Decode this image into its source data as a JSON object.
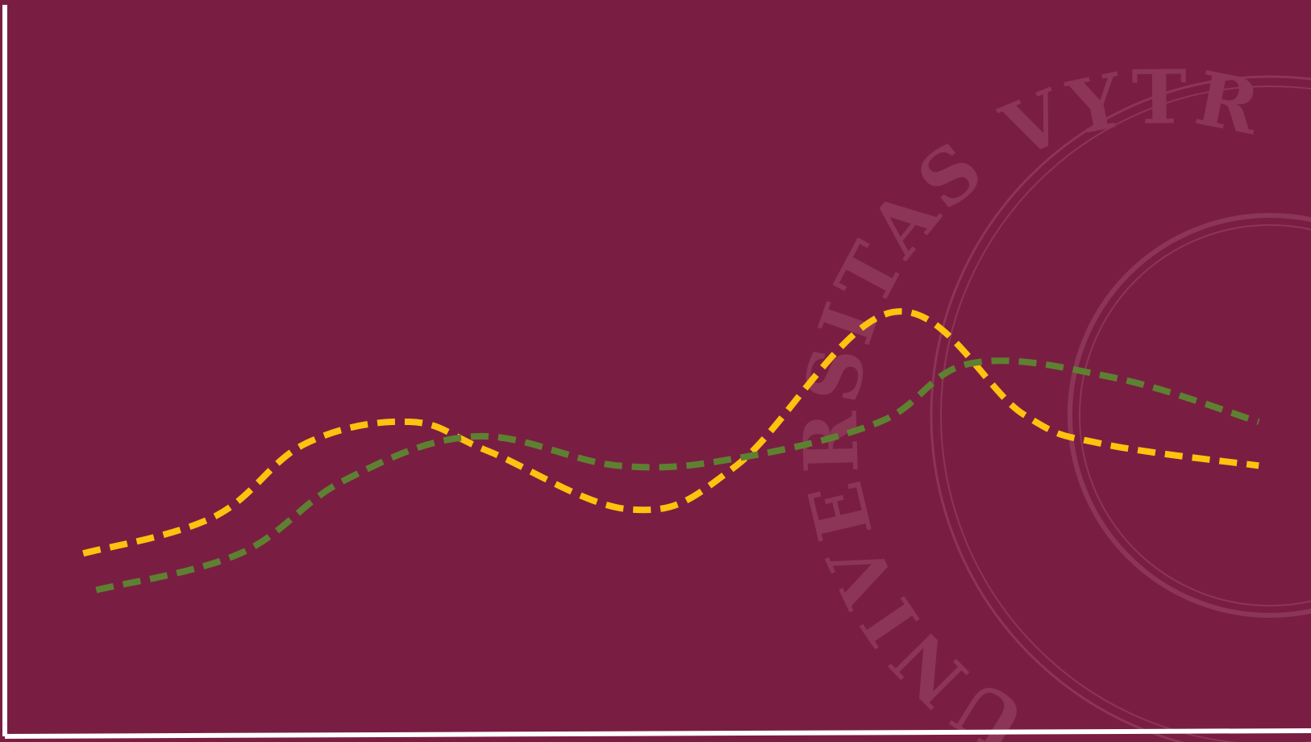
{
  "theme": {
    "background": "#791E42",
    "axis_color": "#FFFFFF",
    "watermark_color": "#8C3557"
  },
  "watermark": {
    "name": "university-seal-watermark",
    "text": "UNIVERSITAS VYTR"
  },
  "chart_data": {
    "type": "line",
    "smooth": true,
    "line_style": "dashed",
    "title": "",
    "xlabel": "",
    "ylabel": "",
    "grid": false,
    "legend": "none",
    "xlim": [
      0,
      100
    ],
    "ylim": [
      0,
      100
    ],
    "series": [
      {
        "color": "#FFC20E",
        "x": [
          6,
          16,
          23,
          31,
          37,
          48,
          56,
          68,
          78,
          84,
          96
        ],
        "y": [
          25,
          30,
          40,
          43,
          39,
          31,
          37,
          58,
          44,
          40,
          37
        ]
      },
      {
        "color": "#5E8131",
        "x": [
          7,
          18,
          26,
          36,
          47,
          56,
          67,
          74,
          85,
          96
        ],
        "y": [
          20,
          25,
          35,
          41,
          37,
          38,
          43,
          51,
          49,
          43
        ]
      }
    ]
  }
}
